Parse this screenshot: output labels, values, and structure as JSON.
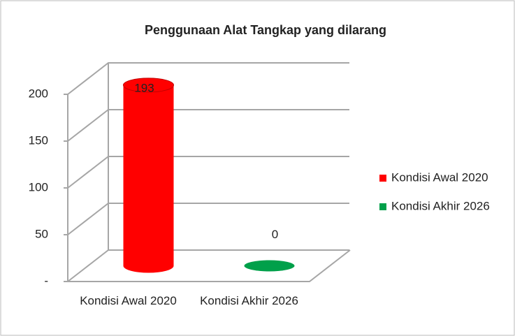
{
  "chart_data": {
    "type": "bar3d",
    "title": "Penggunaan Alat Tangkap yang dilarang",
    "categories": [
      "Kondisi Awal 2020",
      "Kondisi Akhir 2026"
    ],
    "series": [
      {
        "name": "Kondisi Awal 2020",
        "color": "#ff0000",
        "values": [
          193,
          null
        ],
        "value_labels": [
          "193",
          null
        ]
      },
      {
        "name": "Kondisi Akhir 2026",
        "color": "#00a04a",
        "values": [
          null,
          0
        ],
        "value_labels": [
          null,
          "0"
        ]
      }
    ],
    "ylim": [
      0,
      200
    ],
    "yticks": [
      {
        "value": 0,
        "label": "-"
      },
      50,
      100,
      150,
      200
    ],
    "grid": true,
    "legend": "right"
  }
}
